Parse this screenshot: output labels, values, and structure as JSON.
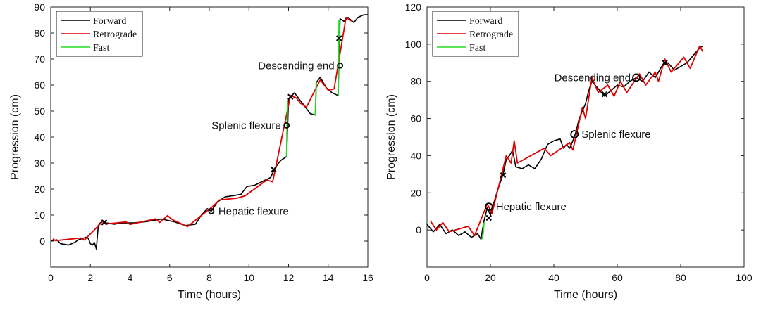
{
  "chart_data": [
    {
      "type": "line",
      "xlabel": "Time (hours)",
      "ylabel": "Progression (cm)",
      "xlim": [
        0,
        16
      ],
      "ylim": [
        -10,
        90
      ],
      "xticks": [
        0,
        2,
        4,
        6,
        8,
        10,
        12,
        14,
        16
      ],
      "yticks": [
        0,
        10,
        20,
        30,
        40,
        50,
        60,
        70,
        80,
        90
      ],
      "legend": {
        "position": "top-left",
        "entries": [
          {
            "name": "Forward",
            "color": "#000000"
          },
          {
            "name": "Retrograde",
            "color": "#e00000"
          },
          {
            "name": "Fast",
            "color": "#22dd22"
          }
        ]
      },
      "series": [
        {
          "name": "Forward",
          "color": "#000000",
          "points": [
            [
              0,
              0
            ],
            [
              0.3,
              0.5
            ],
            [
              0.5,
              -1
            ],
            [
              0.9,
              -1.5
            ],
            [
              1.2,
              -0.5
            ],
            [
              1.4,
              0.5
            ],
            [
              1.8,
              1.5
            ],
            [
              1.9,
              1
            ],
            [
              2,
              -1
            ],
            [
              2.1,
              -1.5
            ],
            [
              2.2,
              -0.5
            ],
            [
              2.3,
              -3
            ],
            [
              2.4,
              6
            ],
            [
              2.5,
              7
            ],
            [
              2.6,
              7.5
            ],
            [
              2.8,
              7
            ],
            [
              3.2,
              6.5
            ],
            [
              3.6,
              7
            ],
            [
              4.2,
              7
            ],
            [
              4.8,
              7.5
            ],
            [
              5.2,
              8
            ],
            [
              5.6,
              8.5
            ],
            [
              6.2,
              7.5
            ],
            [
              6.8,
              6
            ],
            [
              7.3,
              6.5
            ],
            [
              7.6,
              10
            ],
            [
              7.9,
              12.5
            ],
            [
              8.1,
              11.5
            ],
            [
              8.4,
              15
            ],
            [
              8.8,
              17
            ],
            [
              9.2,
              17.5
            ],
            [
              9.6,
              18
            ],
            [
              9.9,
              21
            ],
            [
              10.3,
              21.5
            ],
            [
              10.7,
              23
            ],
            [
              11.1,
              24.5
            ],
            [
              11.3,
              28
            ],
            [
              11.6,
              31
            ],
            [
              11.8,
              32
            ],
            [
              11.9,
              32.5
            ],
            [
              12.0,
              54.5
            ],
            [
              12.3,
              57
            ],
            [
              12.8,
              52
            ],
            [
              13.1,
              49
            ],
            [
              13.35,
              48.5
            ],
            [
              13.4,
              61
            ],
            [
              13.6,
              63
            ],
            [
              13.9,
              59
            ],
            [
              14.2,
              57
            ],
            [
              14.5,
              56
            ],
            [
              14.6,
              85.5
            ],
            [
              14.8,
              84.5
            ],
            [
              15.0,
              86
            ],
            [
              15.3,
              84
            ],
            [
              15.5,
              86
            ],
            [
              15.8,
              87
            ],
            [
              16,
              87
            ]
          ]
        },
        {
          "name": "Retrograde",
          "color": "#e00000",
          "points": [
            [
              0.1,
              0.8
            ],
            [
              0.25,
              0.2
            ],
            [
              1.5,
              1.2
            ],
            [
              1.7,
              0.4
            ],
            [
              2.65,
              7.8
            ],
            [
              2.8,
              6.6
            ],
            [
              3.8,
              7.4
            ],
            [
              4.0,
              6.4
            ],
            [
              5.3,
              8.6
            ],
            [
              5.5,
              7.2
            ],
            [
              5.9,
              9.8
            ],
            [
              6.1,
              8.4
            ],
            [
              6.5,
              7
            ],
            [
              6.9,
              5.6
            ],
            [
              8.2,
              13.5
            ],
            [
              8.5,
              15.8
            ],
            [
              9.4,
              16.5
            ],
            [
              9.8,
              17.4
            ],
            [
              10.9,
              23.5
            ],
            [
              11.2,
              22.8
            ],
            [
              12.1,
              56
            ],
            [
              12.4,
              55
            ],
            [
              12.6,
              53
            ],
            [
              12.9,
              51.5
            ],
            [
              13.6,
              62
            ],
            [
              13.8,
              60
            ],
            [
              14.0,
              58
            ],
            [
              14.3,
              58.5
            ],
            [
              14.9,
              86
            ],
            [
              15.2,
              84.5
            ]
          ]
        },
        {
          "name": "Fast",
          "color": "#22dd22",
          "segments": [
            [
              [
                11.9,
                32.5
              ],
              [
                11.95,
                54
              ]
            ],
            [
              [
                13.35,
                48.5
              ],
              [
                13.4,
                61
              ]
            ],
            [
              [
                14.5,
                56
              ],
              [
                14.55,
                85
              ]
            ]
          ]
        }
      ],
      "annotations": [
        {
          "label": "Hepatic flexure",
          "x": 8.1,
          "y": 11.5
        },
        {
          "label": "Splenic flexure",
          "x": 11.9,
          "y": 44.5
        },
        {
          "label": "Descending end",
          "x": 14.6,
          "y": 67.5
        }
      ],
      "cross_markers": [
        [
          2.7,
          7.2
        ],
        [
          11.25,
          27.5
        ],
        [
          12.1,
          55.5
        ],
        [
          14.55,
          78
        ]
      ]
    },
    {
      "type": "line",
      "xlabel": "Time (hours)",
      "ylabel": "Progression (cm)",
      "xlim": [
        0,
        100
      ],
      "ylim": [
        -20,
        120
      ],
      "xticks": [
        0,
        20,
        40,
        60,
        80,
        100
      ],
      "yticks": [
        0,
        20,
        40,
        60,
        80,
        100,
        120
      ],
      "legend": {
        "position": "top-left",
        "entries": [
          {
            "name": "Forward",
            "color": "#000000"
          },
          {
            "name": "Retrograde",
            "color": "#e00000"
          },
          {
            "name": "Fast",
            "color": "#22dd22"
          }
        ]
      },
      "series": [
        {
          "name": "Forward",
          "color": "#000000",
          "points": [
            [
              0,
              3
            ],
            [
              2,
              -1
            ],
            [
              4,
              3
            ],
            [
              6,
              -2
            ],
            [
              8,
              0
            ],
            [
              10,
              -3
            ],
            [
              12,
              -1
            ],
            [
              14,
              -4
            ],
            [
              16,
              -2
            ],
            [
              17,
              -5
            ],
            [
              18,
              5
            ],
            [
              19,
              12
            ],
            [
              20,
              8
            ],
            [
              21,
              14
            ],
            [
              22,
              20
            ],
            [
              23,
              25
            ],
            [
              24,
              30
            ],
            [
              25,
              38
            ],
            [
              26,
              40
            ],
            [
              27,
              43
            ],
            [
              28,
              34
            ],
            [
              30,
              33
            ],
            [
              32,
              35
            ],
            [
              34,
              33
            ],
            [
              36,
              38
            ],
            [
              38,
              46
            ],
            [
              40,
              48
            ],
            [
              42,
              49
            ],
            [
              43,
              44
            ],
            [
              44,
              46
            ],
            [
              45,
              44
            ],
            [
              46,
              48
            ],
            [
              47,
              53
            ],
            [
              48,
              60
            ],
            [
              49,
              64
            ],
            [
              50,
              68
            ],
            [
              51,
              75
            ],
            [
              52,
              80
            ],
            [
              53,
              78
            ],
            [
              54,
              76
            ],
            [
              55,
              74
            ],
            [
              56,
              72
            ],
            [
              58,
              75
            ],
            [
              60,
              78
            ],
            [
              62,
              77
            ],
            [
              64,
              80
            ],
            [
              66,
              82
            ],
            [
              68,
              80
            ],
            [
              70,
              85
            ],
            [
              72,
              82
            ],
            [
              74,
              88
            ],
            [
              76,
              90
            ],
            [
              78,
              86
            ],
            [
              80,
              88
            ],
            [
              82,
              90
            ],
            [
              84,
              94
            ],
            [
              86,
              98
            ],
            [
              87,
              99
            ]
          ]
        },
        {
          "name": "Retrograde",
          "color": "#e00000",
          "points": [
            [
              1,
              5
            ],
            [
              3,
              0
            ],
            [
              5,
              4
            ],
            [
              7,
              -1
            ],
            [
              13,
              2
            ],
            [
              15,
              -3
            ],
            [
              19,
              14
            ],
            [
              20.5,
              9
            ],
            [
              25,
              40
            ],
            [
              26.5,
              36
            ],
            [
              27.5,
              48
            ],
            [
              28.5,
              36
            ],
            [
              37,
              44
            ],
            [
              39,
              40
            ],
            [
              45,
              47
            ],
            [
              46,
              43
            ],
            [
              49,
              66
            ],
            [
              50,
              60
            ],
            [
              52,
              82
            ],
            [
              54,
              74
            ],
            [
              57,
              78
            ],
            [
              59,
              72
            ],
            [
              61,
              80
            ],
            [
              63,
              74
            ],
            [
              67,
              84
            ],
            [
              69,
              78
            ],
            [
              72,
              85
            ],
            [
              73,
              80
            ],
            [
              75,
              92
            ],
            [
              77,
              85
            ],
            [
              81,
              93
            ],
            [
              83,
              87
            ],
            [
              86,
              99
            ],
            [
              87,
              96
            ]
          ]
        },
        {
          "name": "Fast",
          "color": "#22dd22",
          "segments": [
            [
              [
                17.5,
                -5
              ],
              [
                18,
                4
              ]
            ]
          ]
        }
      ],
      "annotations": [
        {
          "label": "Hepatic flexure",
          "x": 19.5,
          "y": 12.5
        },
        {
          "label": "Splenic flexure",
          "x": 46.5,
          "y": 51.5
        },
        {
          "label": "Descending end",
          "x": 66,
          "y": 82
        }
      ],
      "cross_markers": [
        [
          19.5,
          6.5
        ],
        [
          24,
          29.5
        ],
        [
          56,
          73
        ],
        [
          75,
          90
        ]
      ]
    }
  ]
}
